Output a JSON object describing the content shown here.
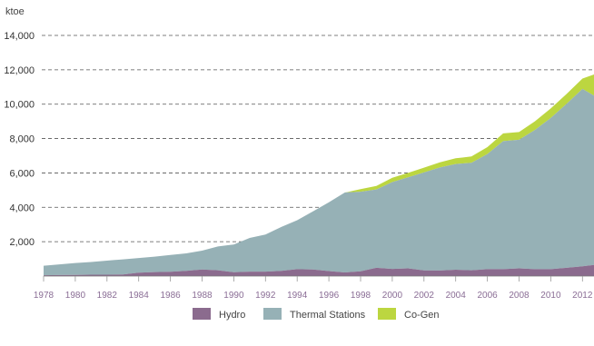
{
  "chart_data": {
    "type": "area",
    "stacked": true,
    "ylabel": "ktoe",
    "ylim": [
      0,
      14000
    ],
    "yticks": [
      2000,
      4000,
      6000,
      8000,
      10000,
      12000,
      14000
    ],
    "ytick_labels": [
      "2,000",
      "4,000",
      "6,000",
      "8,000",
      "10,000",
      "12,000",
      "14,000"
    ],
    "x": [
      1978,
      1979,
      1980,
      1981,
      1982,
      1983,
      1984,
      1985,
      1986,
      1987,
      1988,
      1989,
      1990,
      1991,
      1992,
      1993,
      1994,
      1995,
      1996,
      1997,
      1998,
      1999,
      2000,
      2001,
      2002,
      2003,
      2004,
      2005,
      2006,
      2007,
      2008,
      2009,
      2010,
      2011,
      2012,
      2012.6
    ],
    "xticks": [
      "1978",
      "1980",
      "1982",
      "1984",
      "1986",
      "1988",
      "1990",
      "1992",
      "1994",
      "1996",
      "1998",
      "2000",
      "2002",
      "2004",
      "2006",
      "2008",
      "2010",
      "2012"
    ],
    "grid": "horizontal dashed",
    "legend_position": "bottom",
    "series": [
      {
        "name": "Hydro",
        "color": "#8b6b8e",
        "values": [
          50,
          60,
          70,
          80,
          80,
          90,
          200,
          230,
          250,
          300,
          380,
          340,
          220,
          260,
          260,
          300,
          400,
          380,
          290,
          210,
          280,
          480,
          420,
          450,
          330,
          320,
          370,
          340,
          400,
          400,
          450,
          400,
          400,
          480,
          570,
          650
        ]
      },
      {
        "name": "Thermal Stations",
        "color": "#96b1b6",
        "values": [
          550,
          620,
          690,
          740,
          820,
          880,
          850,
          900,
          980,
          1020,
          1100,
          1380,
          1620,
          1960,
          2160,
          2560,
          2850,
          3380,
          4000,
          4650,
          4630,
          4560,
          5050,
          5300,
          5700,
          6000,
          6150,
          6250,
          6700,
          7450,
          7480,
          8100,
          8800,
          9540,
          10320,
          9850
        ]
      },
      {
        "name": "Co-Gen",
        "color": "#bcd640",
        "values": [
          0,
          0,
          0,
          0,
          0,
          0,
          0,
          0,
          0,
          0,
          0,
          0,
          0,
          0,
          0,
          0,
          0,
          0,
          0,
          0,
          150,
          200,
          250,
          250,
          280,
          300,
          330,
          370,
          400,
          450,
          450,
          500,
          550,
          580,
          600,
          1230
        ]
      }
    ]
  }
}
